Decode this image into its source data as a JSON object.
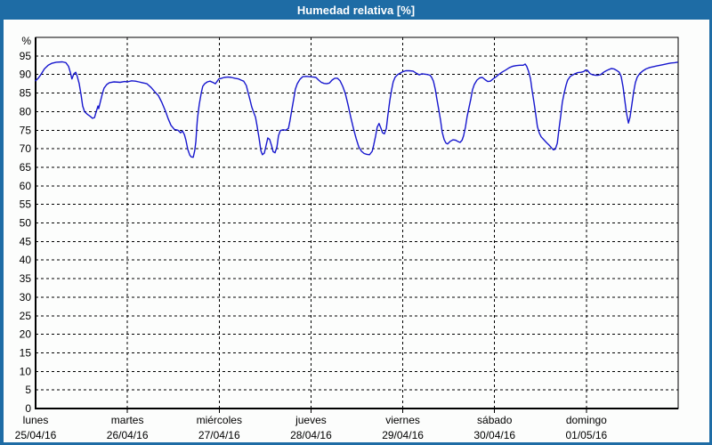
{
  "window": {
    "title": "Humedad relativa [%]"
  },
  "colors": {
    "frame_blue": "#1E6CA5",
    "title_text": "#FFFFFF",
    "panel_bg": "#FCFDFC",
    "grid": "#000000",
    "axis": "#000000",
    "line": "#1717CE",
    "tick_text": "#000000"
  },
  "chart_data": {
    "type": "line",
    "title": "Humedad relativa [%]",
    "ylabel": "%",
    "xlabel": "",
    "ylim": [
      0,
      100
    ],
    "y_ticks": [
      0,
      5,
      10,
      15,
      20,
      25,
      30,
      35,
      40,
      45,
      50,
      55,
      60,
      65,
      70,
      75,
      80,
      85,
      90,
      95
    ],
    "y_unit_label": "%",
    "grid": "dashed",
    "legend": "none",
    "x_unit": "hours from Monday 00:00",
    "xlim_hours": [
      0,
      168
    ],
    "hours_per_day": 24,
    "day_labels": [
      {
        "name": "lunes",
        "date": "25/04/16"
      },
      {
        "name": "martes",
        "date": "26/04/16"
      },
      {
        "name": "miércoles",
        "date": "27/04/16"
      },
      {
        "name": "jueves",
        "date": "28/04/16"
      },
      {
        "name": "viernes",
        "date": "29/04/16"
      },
      {
        "name": "sábado",
        "date": "30/04/16"
      },
      {
        "name": "domingo",
        "date": "01/05/16"
      }
    ],
    "series": [
      {
        "name": "Humedad relativa",
        "color": "#1717CE",
        "points": [
          [
            0,
            88.3
          ],
          [
            0.7,
            89
          ],
          [
            1.4,
            90
          ],
          [
            2.3,
            91.5
          ],
          [
            3.3,
            92.5
          ],
          [
            4.2,
            93
          ],
          [
            5.4,
            93.3
          ],
          [
            7,
            93.4
          ],
          [
            7.9,
            93.2
          ],
          [
            8.6,
            92.2
          ],
          [
            9.1,
            90.5
          ],
          [
            9.5,
            88.8
          ],
          [
            10,
            90.2
          ],
          [
            10.5,
            90.6
          ],
          [
            10.9,
            89.5
          ],
          [
            11.4,
            87.5
          ],
          [
            11.9,
            84.5
          ],
          [
            12.3,
            81.5
          ],
          [
            12.8,
            80
          ],
          [
            13.5,
            79.3
          ],
          [
            14.2,
            78.8
          ],
          [
            14.9,
            78.2
          ],
          [
            15.4,
            78.4
          ],
          [
            15.8,
            79.8
          ],
          [
            16.3,
            81.5
          ],
          [
            16.5,
            80.8
          ],
          [
            17,
            83
          ],
          [
            17.5,
            85
          ],
          [
            17.9,
            86.3
          ],
          [
            18.6,
            87.3
          ],
          [
            19.3,
            87.8
          ],
          [
            20.5,
            88
          ],
          [
            22.1,
            87.9
          ],
          [
            23.3,
            88.1
          ],
          [
            24,
            88
          ],
          [
            25.1,
            88.3
          ],
          [
            26.1,
            88.2
          ],
          [
            27,
            88
          ],
          [
            27.9,
            87.8
          ],
          [
            29.1,
            87.5
          ],
          [
            30.2,
            86.5
          ],
          [
            31.2,
            85.3
          ],
          [
            32.1,
            84.3
          ],
          [
            33,
            82.5
          ],
          [
            34,
            80
          ],
          [
            34.7,
            78
          ],
          [
            35.4,
            76.3
          ],
          [
            36.3,
            75.2
          ],
          [
            37.2,
            75
          ],
          [
            37.9,
            74.3
          ],
          [
            38.4,
            74.8
          ],
          [
            38.9,
            73.8
          ],
          [
            39.3,
            72.3
          ],
          [
            39.8,
            69.8
          ],
          [
            40.3,
            68.3
          ],
          [
            40.7,
            67.8
          ],
          [
            41.2,
            67.7
          ],
          [
            41.6,
            69.5
          ],
          [
            41.9,
            72
          ],
          [
            42.1,
            75
          ],
          [
            42.3,
            78
          ],
          [
            42.8,
            82
          ],
          [
            43.3,
            85
          ],
          [
            43.7,
            86.8
          ],
          [
            44.2,
            87.5
          ],
          [
            44.9,
            88
          ],
          [
            45.6,
            88.2
          ],
          [
            46.5,
            87.8
          ],
          [
            47,
            87.5
          ],
          [
            47.5,
            88.2
          ],
          [
            47.9,
            88.8
          ],
          [
            48.6,
            89
          ],
          [
            49.3,
            89.2
          ],
          [
            50.3,
            89.3
          ],
          [
            51.2,
            89.2
          ],
          [
            52.1,
            89
          ],
          [
            53.1,
            88.8
          ],
          [
            53.7,
            88.5
          ],
          [
            54.4,
            88.2
          ],
          [
            55.1,
            87
          ],
          [
            55.6,
            85
          ],
          [
            56.1,
            83
          ],
          [
            56.5,
            81.3
          ],
          [
            57,
            79.8
          ],
          [
            57.5,
            78.5
          ],
          [
            57.9,
            76.2
          ],
          [
            58.4,
            73
          ],
          [
            58.9,
            69.5
          ],
          [
            59.3,
            68.4
          ],
          [
            59.8,
            68.8
          ],
          [
            60.3,
            71
          ],
          [
            60.7,
            72.9
          ],
          [
            61.2,
            72.5
          ],
          [
            61.7,
            70.8
          ],
          [
            62.1,
            69.2
          ],
          [
            62.6,
            68.9
          ],
          [
            63.1,
            70.5
          ],
          [
            63.5,
            73.5
          ],
          [
            64,
            74.9
          ],
          [
            64.7,
            75.1
          ],
          [
            65.4,
            75
          ],
          [
            66.1,
            75.5
          ],
          [
            66.5,
            77.5
          ],
          [
            67,
            80.5
          ],
          [
            67.5,
            83.5
          ],
          [
            67.9,
            86
          ],
          [
            68.4,
            87.5
          ],
          [
            69.1,
            88.7
          ],
          [
            69.8,
            89.4
          ],
          [
            70.7,
            89.5
          ],
          [
            71.7,
            89.4
          ],
          [
            72.6,
            89.3
          ],
          [
            73.3,
            89.2
          ],
          [
            74,
            88.5
          ],
          [
            74.7,
            87.9
          ],
          [
            75.4,
            87.6
          ],
          [
            76.1,
            87.5
          ],
          [
            76.8,
            87.7
          ],
          [
            77.5,
            88.5
          ],
          [
            78.2,
            89
          ],
          [
            78.9,
            89
          ],
          [
            79.6,
            88.3
          ],
          [
            80.3,
            86.8
          ],
          [
            81,
            84.8
          ],
          [
            81.7,
            81.8
          ],
          [
            82.4,
            78.5
          ],
          [
            83.1,
            75.5
          ],
          [
            83.8,
            72.8
          ],
          [
            84.5,
            70.5
          ],
          [
            85.2,
            69.3
          ],
          [
            85.9,
            68.7
          ],
          [
            86.6,
            68.5
          ],
          [
            87.3,
            68.4
          ],
          [
            88,
            69.3
          ],
          [
            88.4,
            71
          ],
          [
            88.9,
            73.5
          ],
          [
            89.3,
            75.8
          ],
          [
            89.8,
            76.8
          ],
          [
            90.3,
            75.5
          ],
          [
            90.7,
            74.3
          ],
          [
            91.2,
            74
          ],
          [
            91.7,
            75.5
          ],
          [
            92.1,
            79
          ],
          [
            92.6,
            83
          ],
          [
            93.1,
            86
          ],
          [
            93.5,
            88
          ],
          [
            94,
            89.3
          ],
          [
            94.7,
            90
          ],
          [
            95.4,
            90.4
          ],
          [
            96.1,
            90.8
          ],
          [
            96.8,
            91
          ],
          [
            97.7,
            91
          ],
          [
            98.7,
            90.9
          ],
          [
            99.6,
            90.3
          ],
          [
            100.3,
            89.9
          ],
          [
            101,
            90.2
          ],
          [
            101.7,
            90.1
          ],
          [
            102.4,
            90
          ],
          [
            103.1,
            89.8
          ],
          [
            103.5,
            89.3
          ],
          [
            104,
            88.2
          ],
          [
            104.5,
            86
          ],
          [
            104.9,
            83.5
          ],
          [
            105.4,
            80.5
          ],
          [
            105.9,
            77.5
          ],
          [
            106.3,
            74.5
          ],
          [
            106.8,
            72.5
          ],
          [
            107.3,
            71.5
          ],
          [
            107.7,
            71.3
          ],
          [
            108.4,
            72
          ],
          [
            109.1,
            72.4
          ],
          [
            109.8,
            72.3
          ],
          [
            110.5,
            71.9
          ],
          [
            111,
            71.7
          ],
          [
            111.5,
            72.3
          ],
          [
            111.9,
            73.5
          ],
          [
            112.4,
            76
          ],
          [
            112.8,
            78.6
          ],
          [
            113.3,
            81
          ],
          [
            113.8,
            83.5
          ],
          [
            114.2,
            85.8
          ],
          [
            114.7,
            87.3
          ],
          [
            115.4,
            88.5
          ],
          [
            116.1,
            89.1
          ],
          [
            116.8,
            89.2
          ],
          [
            117.5,
            88.6
          ],
          [
            118.2,
            88.1
          ],
          [
            118.9,
            88.2
          ],
          [
            119.6,
            88.8
          ],
          [
            120.3,
            89.3
          ],
          [
            121,
            89.9
          ],
          [
            121.9,
            90.6
          ],
          [
            122.9,
            91.2
          ],
          [
            123.8,
            91.8
          ],
          [
            124.7,
            92.2
          ],
          [
            125.7,
            92.4
          ],
          [
            126.6,
            92.5
          ],
          [
            127.5,
            92.5
          ],
          [
            128,
            92.8
          ],
          [
            128.4,
            92.2
          ],
          [
            128.9,
            90.8
          ],
          [
            129.4,
            88.8
          ],
          [
            129.8,
            85.8
          ],
          [
            130.3,
            82.5
          ],
          [
            130.8,
            79
          ],
          [
            131.2,
            76
          ],
          [
            131.7,
            74.2
          ],
          [
            132.2,
            73.2
          ],
          [
            132.9,
            72.4
          ],
          [
            133.6,
            71.6
          ],
          [
            134.3,
            70.9
          ],
          [
            135,
            70.1
          ],
          [
            135.4,
            69.7
          ],
          [
            135.9,
            69.9
          ],
          [
            136.4,
            71.5
          ],
          [
            136.8,
            75
          ],
          [
            137.3,
            79
          ],
          [
            137.7,
            82.5
          ],
          [
            138.2,
            85
          ],
          [
            138.7,
            87.2
          ],
          [
            139.1,
            88.5
          ],
          [
            139.8,
            89.5
          ],
          [
            140.8,
            90.1
          ],
          [
            141.7,
            90.5
          ],
          [
            142.6,
            90.6
          ],
          [
            143.3,
            90.8
          ],
          [
            143.8,
            91.2
          ],
          [
            144.3,
            91.1
          ],
          [
            145,
            90.2
          ],
          [
            145.7,
            89.9
          ],
          [
            146.4,
            89.8
          ],
          [
            147.1,
            89.8
          ],
          [
            147.8,
            90
          ],
          [
            148.5,
            90.6
          ],
          [
            149.2,
            91
          ],
          [
            149.8,
            91.3
          ],
          [
            150.5,
            91.6
          ],
          [
            151.2,
            91.5
          ],
          [
            151.9,
            91.1
          ],
          [
            152.6,
            90.6
          ],
          [
            153.1,
            89.4
          ],
          [
            153.6,
            86.6
          ],
          [
            154,
            83.4
          ],
          [
            154.5,
            79.5
          ],
          [
            155,
            76.9
          ],
          [
            155.4,
            78.5
          ],
          [
            155.9,
            82
          ],
          [
            156.4,
            85.5
          ],
          [
            156.8,
            87.8
          ],
          [
            157.3,
            89.3
          ],
          [
            158,
            90.3
          ],
          [
            158.7,
            90.9
          ],
          [
            159.6,
            91.5
          ],
          [
            160.6,
            91.9
          ],
          [
            161.5,
            92.1
          ],
          [
            162.4,
            92.3
          ],
          [
            163.3,
            92.5
          ],
          [
            164.3,
            92.7
          ],
          [
            165.2,
            92.9
          ],
          [
            166.1,
            93.1
          ],
          [
            167.1,
            93.2
          ],
          [
            167.8,
            93.3
          ]
        ]
      }
    ]
  }
}
